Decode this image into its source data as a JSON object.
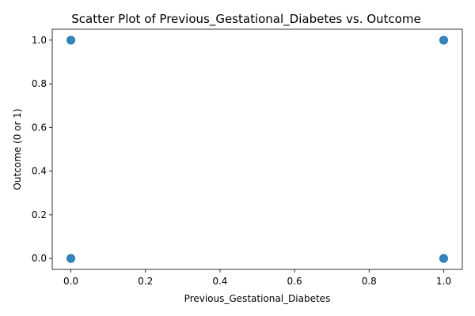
{
  "chart_data": {
    "type": "scatter",
    "title": "Scatter Plot of Previous_Gestational_Diabetes vs. Outcome",
    "xlabel": "Previous_Gestational_Diabetes",
    "ylabel": "Outcome (0 or 1)",
    "xlim": [
      -0.05,
      1.05
    ],
    "ylim": [
      -0.05,
      1.05
    ],
    "x_ticks": [
      0.0,
      0.2,
      0.4,
      0.6,
      0.8,
      1.0
    ],
    "x_tick_labels": [
      "0.0",
      "0.2",
      "0.4",
      "0.6",
      "0.8",
      "1.0"
    ],
    "y_ticks": [
      0.0,
      0.2,
      0.4,
      0.6,
      0.8,
      1.0
    ],
    "y_tick_labels": [
      "0.0",
      "0.2",
      "0.4",
      "0.6",
      "0.8",
      "1.0"
    ],
    "grid": false,
    "legend": "none",
    "marker_color": "#1f77b4",
    "points": [
      {
        "x": 0,
        "y": 0
      },
      {
        "x": 0,
        "y": 1
      },
      {
        "x": 1,
        "y": 0
      },
      {
        "x": 1,
        "y": 1
      }
    ]
  }
}
